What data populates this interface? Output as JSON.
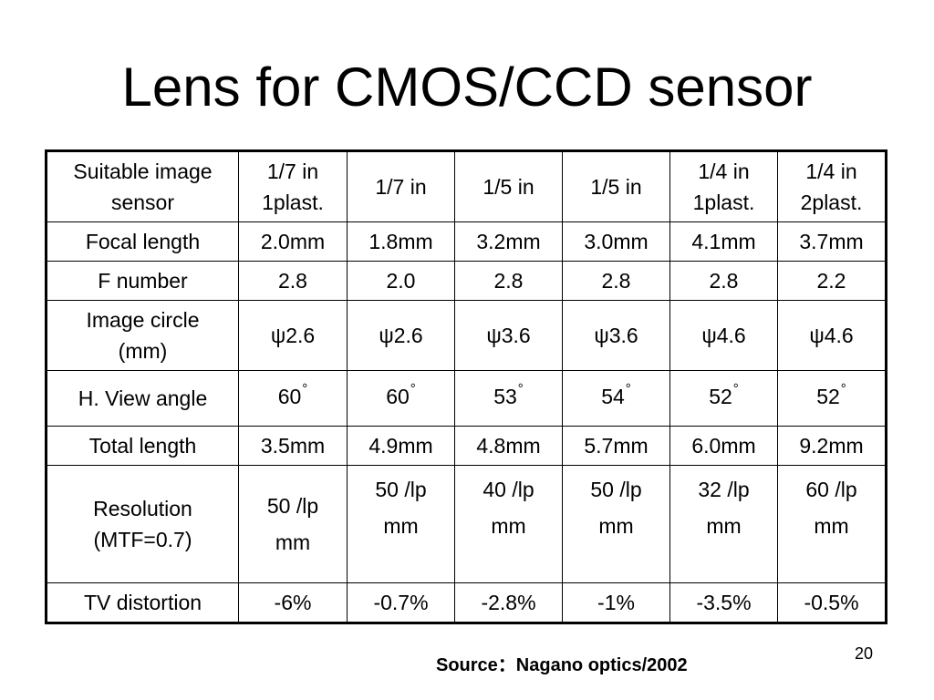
{
  "title": "Lens for CMOS/CCD sensor",
  "table": {
    "rows": [
      {
        "label": [
          "Suitable image",
          "sensor"
        ],
        "cells": [
          [
            "1/7 in",
            "1plast."
          ],
          [
            "1/7 in"
          ],
          [
            "1/5 in"
          ],
          [
            "1/5 in"
          ],
          [
            "1/4 in",
            "1plast."
          ],
          [
            "1/4 in",
            "2plast."
          ]
        ]
      },
      {
        "label": [
          "Focal length"
        ],
        "cells": [
          [
            "2.0mm"
          ],
          [
            "1.8mm"
          ],
          [
            "3.2mm"
          ],
          [
            "3.0mm"
          ],
          [
            "4.1mm"
          ],
          [
            "3.7mm"
          ]
        ]
      },
      {
        "label": [
          "F number"
        ],
        "cells": [
          [
            "2.8"
          ],
          [
            "2.0"
          ],
          [
            "2.8"
          ],
          [
            "2.8"
          ],
          [
            "2.8"
          ],
          [
            "2.2"
          ]
        ]
      },
      {
        "label": [
          "Image circle",
          "(mm)"
        ],
        "cells": [
          [
            "ψ2.6"
          ],
          [
            "ψ2.6"
          ],
          [
            "ψ3.6"
          ],
          [
            "ψ3.6"
          ],
          [
            "ψ4.6"
          ],
          [
            "ψ4.6"
          ]
        ]
      },
      {
        "label": [
          "H. View angle"
        ],
        "degree_symbol": "°",
        "cells": [
          [
            "60"
          ],
          [
            "60"
          ],
          [
            "53"
          ],
          [
            "54"
          ],
          [
            "52"
          ],
          [
            "52"
          ]
        ]
      },
      {
        "label": [
          "Total length"
        ],
        "cells": [
          [
            "3.5mm"
          ],
          [
            "4.9mm"
          ],
          [
            "4.8mm"
          ],
          [
            "5.7mm"
          ],
          [
            "6.0mm"
          ],
          [
            "9.2mm"
          ]
        ]
      },
      {
        "label": [
          "Resolution",
          "(MTF=0.7)"
        ],
        "cells": [
          [
            "50 /lp",
            "mm"
          ],
          [
            "50 /lp",
            "mm"
          ],
          [
            "40 /lp",
            "mm"
          ],
          [
            "50 /lp",
            "mm"
          ],
          [
            "32 /lp",
            "mm"
          ],
          [
            "60 /lp",
            "mm"
          ]
        ]
      },
      {
        "label": [
          "TV distortion"
        ],
        "cells": [
          [
            "-6%"
          ],
          [
            "-0.7%"
          ],
          [
            "-2.8%"
          ],
          [
            "-1%"
          ],
          [
            "-3.5%"
          ],
          [
            "-0.5%"
          ]
        ]
      }
    ]
  },
  "source": "Source：Nagano optics/2002",
  "page_number": "20"
}
